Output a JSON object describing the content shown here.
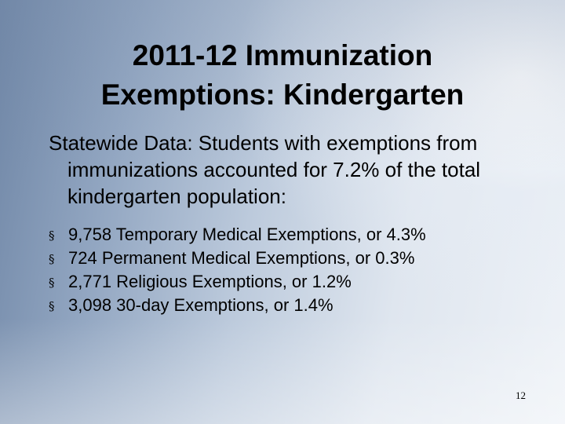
{
  "slide": {
    "title_lines": [
      "2011-12 Immunization",
      "Exemptions: Kindergarten"
    ],
    "intro": "Statewide Data: Students with exemptions from immunizations accounted for 7.2% of the total kindergarten population:",
    "bullet_symbol": "§",
    "bullets": [
      "9,758 Temporary Medical Exemptions, or 4.3%",
      "724 Permanent Medical Exemptions, or 0.3%",
      "2,771 Religious Exemptions, or 1.2%",
      "3,098 30-day Exemptions, or 1.4%"
    ],
    "page_number": "12"
  }
}
